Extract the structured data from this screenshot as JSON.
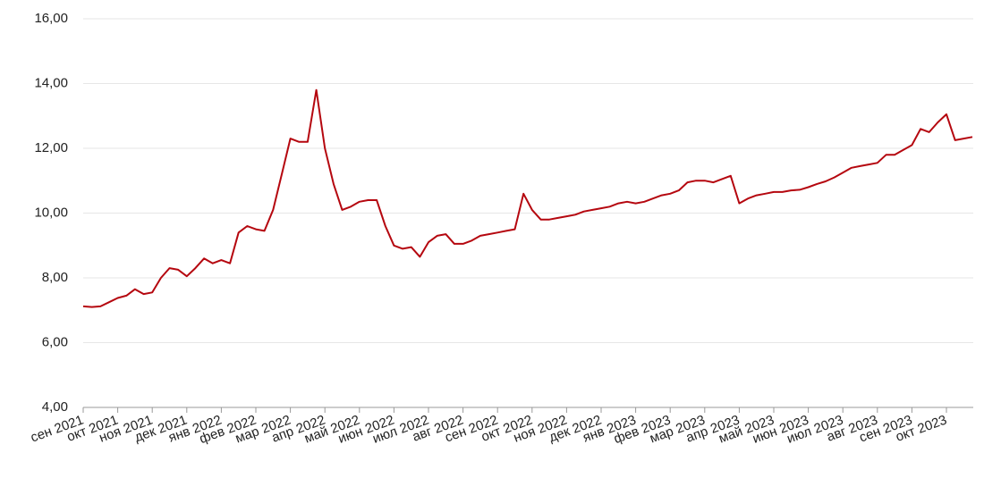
{
  "chart_data": {
    "type": "line",
    "categories": [
      "сен 2021",
      null,
      null,
      null,
      "окт 2021",
      null,
      null,
      null,
      "ноя 2021",
      null,
      null,
      null,
      "дек 2021",
      null,
      null,
      null,
      "янв 2022",
      null,
      null,
      null,
      "фев 2022",
      null,
      null,
      null,
      "мар 2022",
      null,
      null,
      null,
      "апр 2022",
      null,
      null,
      null,
      "май 2022",
      null,
      null,
      null,
      "июн 2022",
      null,
      null,
      null,
      "июл 2022",
      null,
      null,
      null,
      "авг 2022",
      null,
      null,
      null,
      "сен 2022",
      null,
      null,
      null,
      "окт 2022",
      null,
      null,
      null,
      "ноя 2022",
      null,
      null,
      null,
      "дек 2022",
      null,
      null,
      null,
      "янв 2023",
      null,
      null,
      null,
      "фев 2023",
      null,
      null,
      null,
      "мар 2023",
      null,
      null,
      null,
      "апр 2023",
      null,
      null,
      null,
      "май 2023",
      null,
      null,
      null,
      "июн 2023",
      null,
      null,
      null,
      "июл 2023",
      null,
      null,
      null,
      "авг 2023",
      null,
      null,
      null,
      "сен 2023",
      null,
      null,
      null,
      "окт 2023",
      null,
      null,
      null
    ],
    "series": [
      {
        "color": "#b5070f",
        "values": [
          7.12,
          7.1,
          7.12,
          7.25,
          7.38,
          7.45,
          7.65,
          7.5,
          7.55,
          8.0,
          8.3,
          8.25,
          8.05,
          8.3,
          8.6,
          8.45,
          8.55,
          8.45,
          9.4,
          9.6,
          9.5,
          9.45,
          10.1,
          11.2,
          12.3,
          12.2,
          12.2,
          13.8,
          12.0,
          10.9,
          10.1,
          10.2,
          10.35,
          10.4,
          10.4,
          9.6,
          9.0,
          8.9,
          8.95,
          8.65,
          9.1,
          9.3,
          9.35,
          9.05,
          9.05,
          9.15,
          9.3,
          9.35,
          9.4,
          9.45,
          9.5,
          10.6,
          10.1,
          9.8,
          9.8,
          9.85,
          9.9,
          9.95,
          10.05,
          10.1,
          10.15,
          10.2,
          10.3,
          10.35,
          10.3,
          10.35,
          10.45,
          10.55,
          10.6,
          10.7,
          10.95,
          11.0,
          11.0,
          10.95,
          11.05,
          11.15,
          10.3,
          10.45,
          10.55,
          10.6,
          10.65,
          10.65,
          10.7,
          10.72,
          10.8,
          10.9,
          10.98,
          11.1,
          11.25,
          11.4,
          11.45,
          11.5,
          11.55,
          11.8,
          11.8,
          11.95,
          12.1,
          12.6,
          12.5,
          12.8,
          13.05,
          12.25,
          12.3,
          12.35
        ]
      }
    ],
    "ylim": [
      4,
      16
    ],
    "yticks": [
      {
        "value": 4,
        "label": "4,00"
      },
      {
        "value": 6,
        "label": "6,00"
      },
      {
        "value": 8,
        "label": "8,00"
      },
      {
        "value": 10,
        "label": "10,00"
      },
      {
        "value": 12,
        "label": "12,00"
      },
      {
        "value": 14,
        "label": "14,00"
      },
      {
        "value": 16,
        "label": "16,00"
      }
    ],
    "grid": true
  }
}
